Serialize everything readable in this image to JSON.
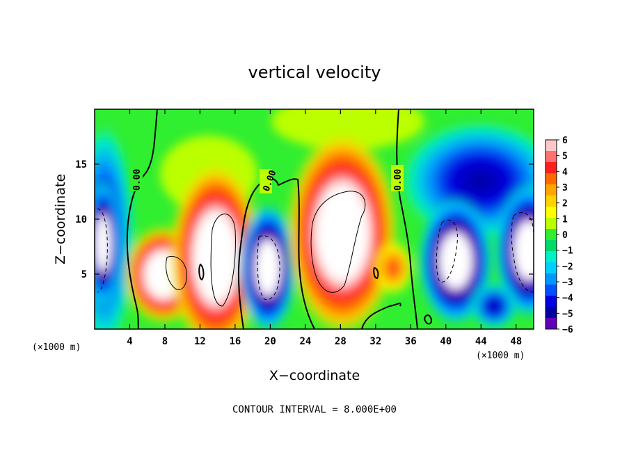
{
  "chart_data": {
    "type": "heatmap",
    "title": "vertical velocity",
    "xlabel": "X−coordinate",
    "ylabel": "Z−coordinate",
    "x_unit_left": "(×1000 m)",
    "x_unit_right": "(×1000 m)",
    "xlim": [
      0,
      50
    ],
    "ylim": [
      0,
      20
    ],
    "xticks": [
      4,
      8,
      12,
      16,
      20,
      24,
      28,
      32,
      36,
      40,
      44,
      48
    ],
    "xtick_labels": [
      "4",
      "8",
      "12",
      "16",
      "20",
      "24",
      "28",
      "32",
      "36",
      "40",
      "44",
      "48"
    ],
    "yticks": [
      5,
      10,
      15
    ],
    "ytick_labels": [
      "5",
      "10",
      "15"
    ],
    "colorbar": {
      "min": -6,
      "max": 6,
      "labels": [
        "6",
        "5",
        "4",
        "3",
        "2",
        "1",
        "0",
        "−1",
        "−2",
        "−3",
        "−4",
        "−5",
        "−6"
      ],
      "colors": [
        "#ffc8c8",
        "#ff7070",
        "#ff1e1e",
        "#ff6a00",
        "#ffa500",
        "#ffd200",
        "#ffff00",
        "#bbff00",
        "#30ee30",
        "#00d86a",
        "#00f0c8",
        "#00d0ff",
        "#0098ff",
        "#0050ff",
        "#0000e0",
        "#0000a0",
        "#6000b8"
      ]
    },
    "zero_contour_labels": [
      "0.00",
      "0.00",
      "0.00"
    ],
    "cells": [
      {
        "x": 1,
        "z": 8,
        "w": -7
      },
      {
        "x": 4,
        "z": 14,
        "w": -4
      },
      {
        "x": 7,
        "z": 5,
        "w": 7
      },
      {
        "x": 10,
        "z": 12,
        "w": 3
      },
      {
        "x": 14,
        "z": 7,
        "w": 9
      },
      {
        "x": 20,
        "z": 6,
        "w": -7
      },
      {
        "x": 28,
        "z": 9,
        "w": 9
      },
      {
        "x": 33,
        "z": 5,
        "w": 4
      },
      {
        "x": 37,
        "z": 12,
        "w": -3
      },
      {
        "x": 41,
        "z": 8,
        "w": -7
      },
      {
        "x": 45,
        "z": 3,
        "w": -5
      },
      {
        "x": 48,
        "z": 7,
        "w": -7
      }
    ]
  },
  "footer": {
    "contour_interval": "CONTOUR INTERVAL = 8.000E+00"
  }
}
